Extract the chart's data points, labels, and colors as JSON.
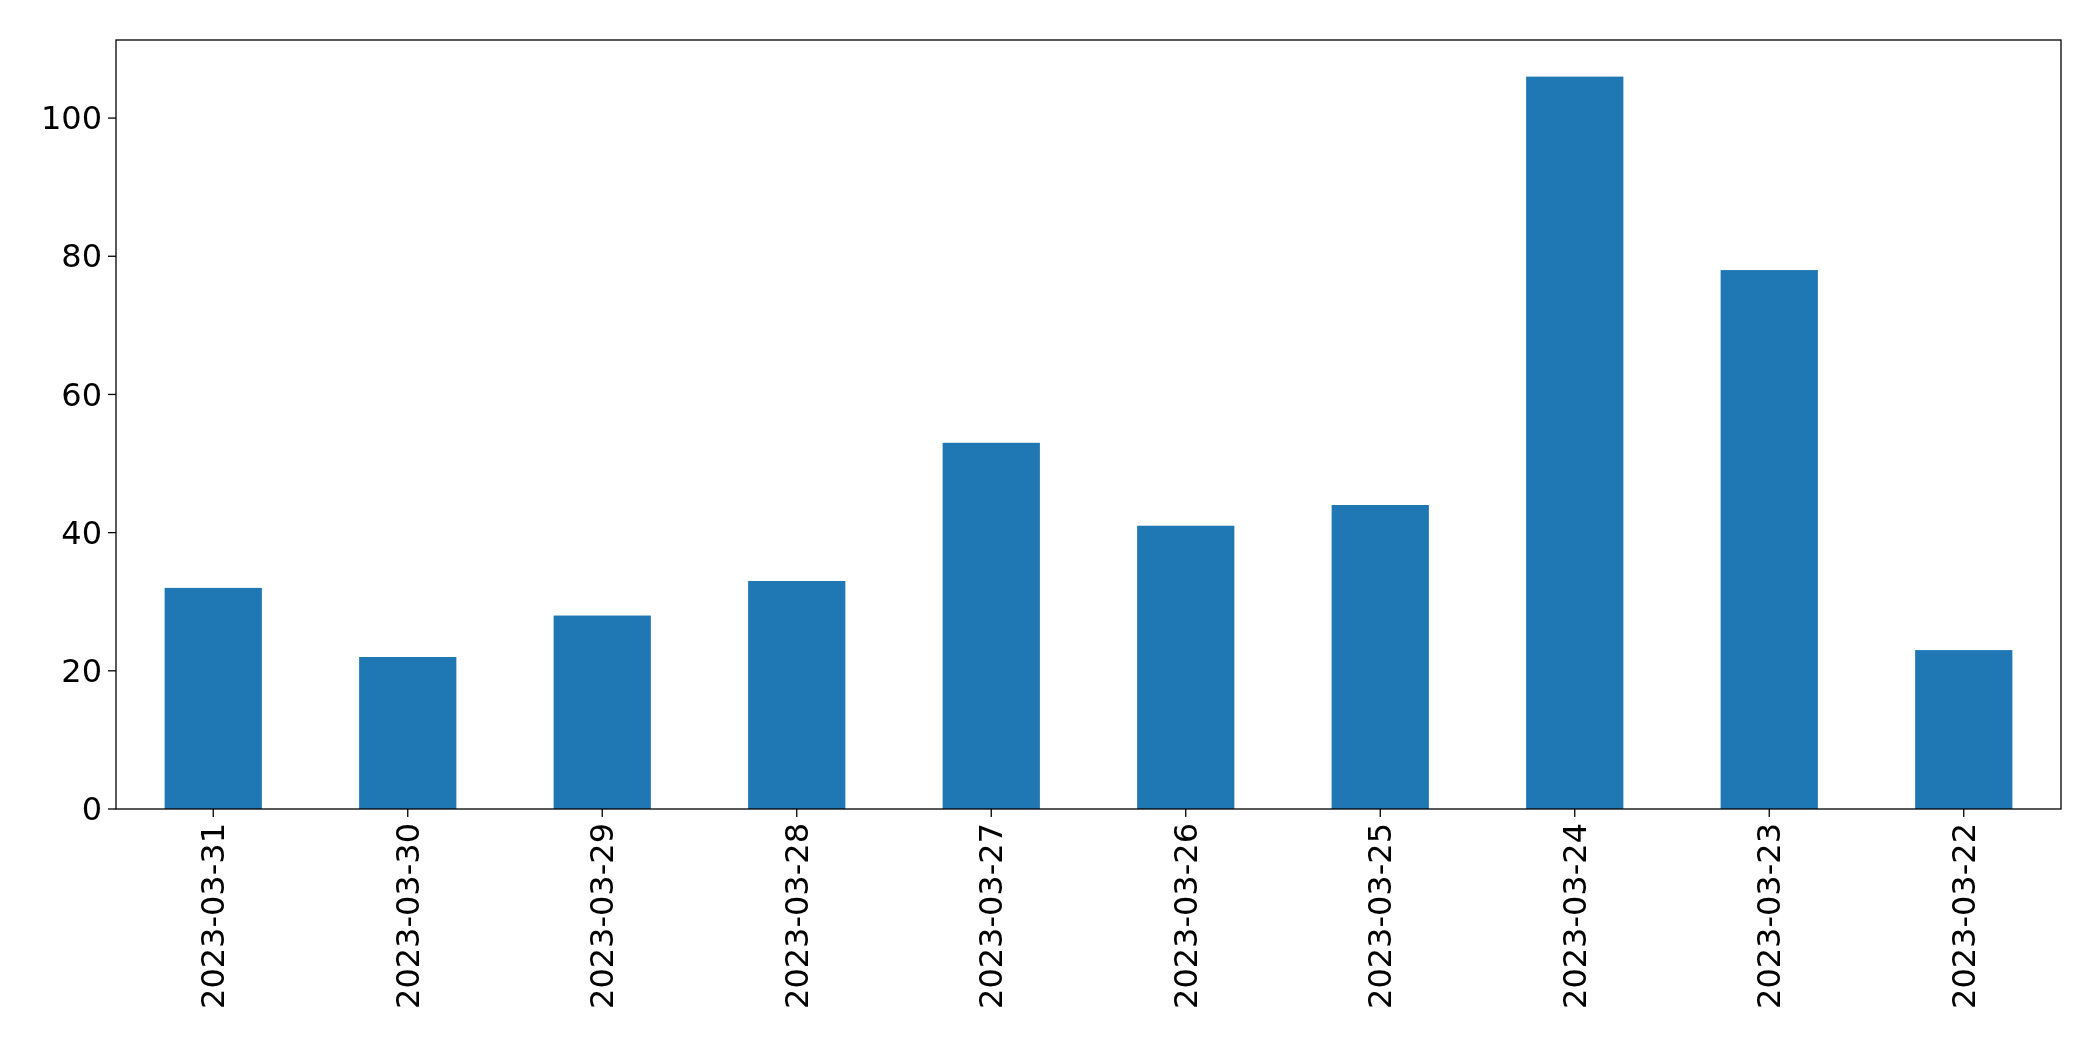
{
  "chart_data": {
    "type": "bar",
    "categories": [
      "2023-03-31",
      "2023-03-30",
      "2023-03-29",
      "2023-03-28",
      "2023-03-27",
      "2023-03-26",
      "2023-03-25",
      "2023-03-24",
      "2023-03-23",
      "2023-03-22"
    ],
    "values": [
      32,
      22,
      28,
      33,
      53,
      41,
      44,
      106,
      78,
      23
    ],
    "color": "#1f77b4",
    "ylim": [
      0,
      111.3
    ],
    "yticks": [
      0,
      20,
      40,
      60,
      80,
      100
    ]
  }
}
